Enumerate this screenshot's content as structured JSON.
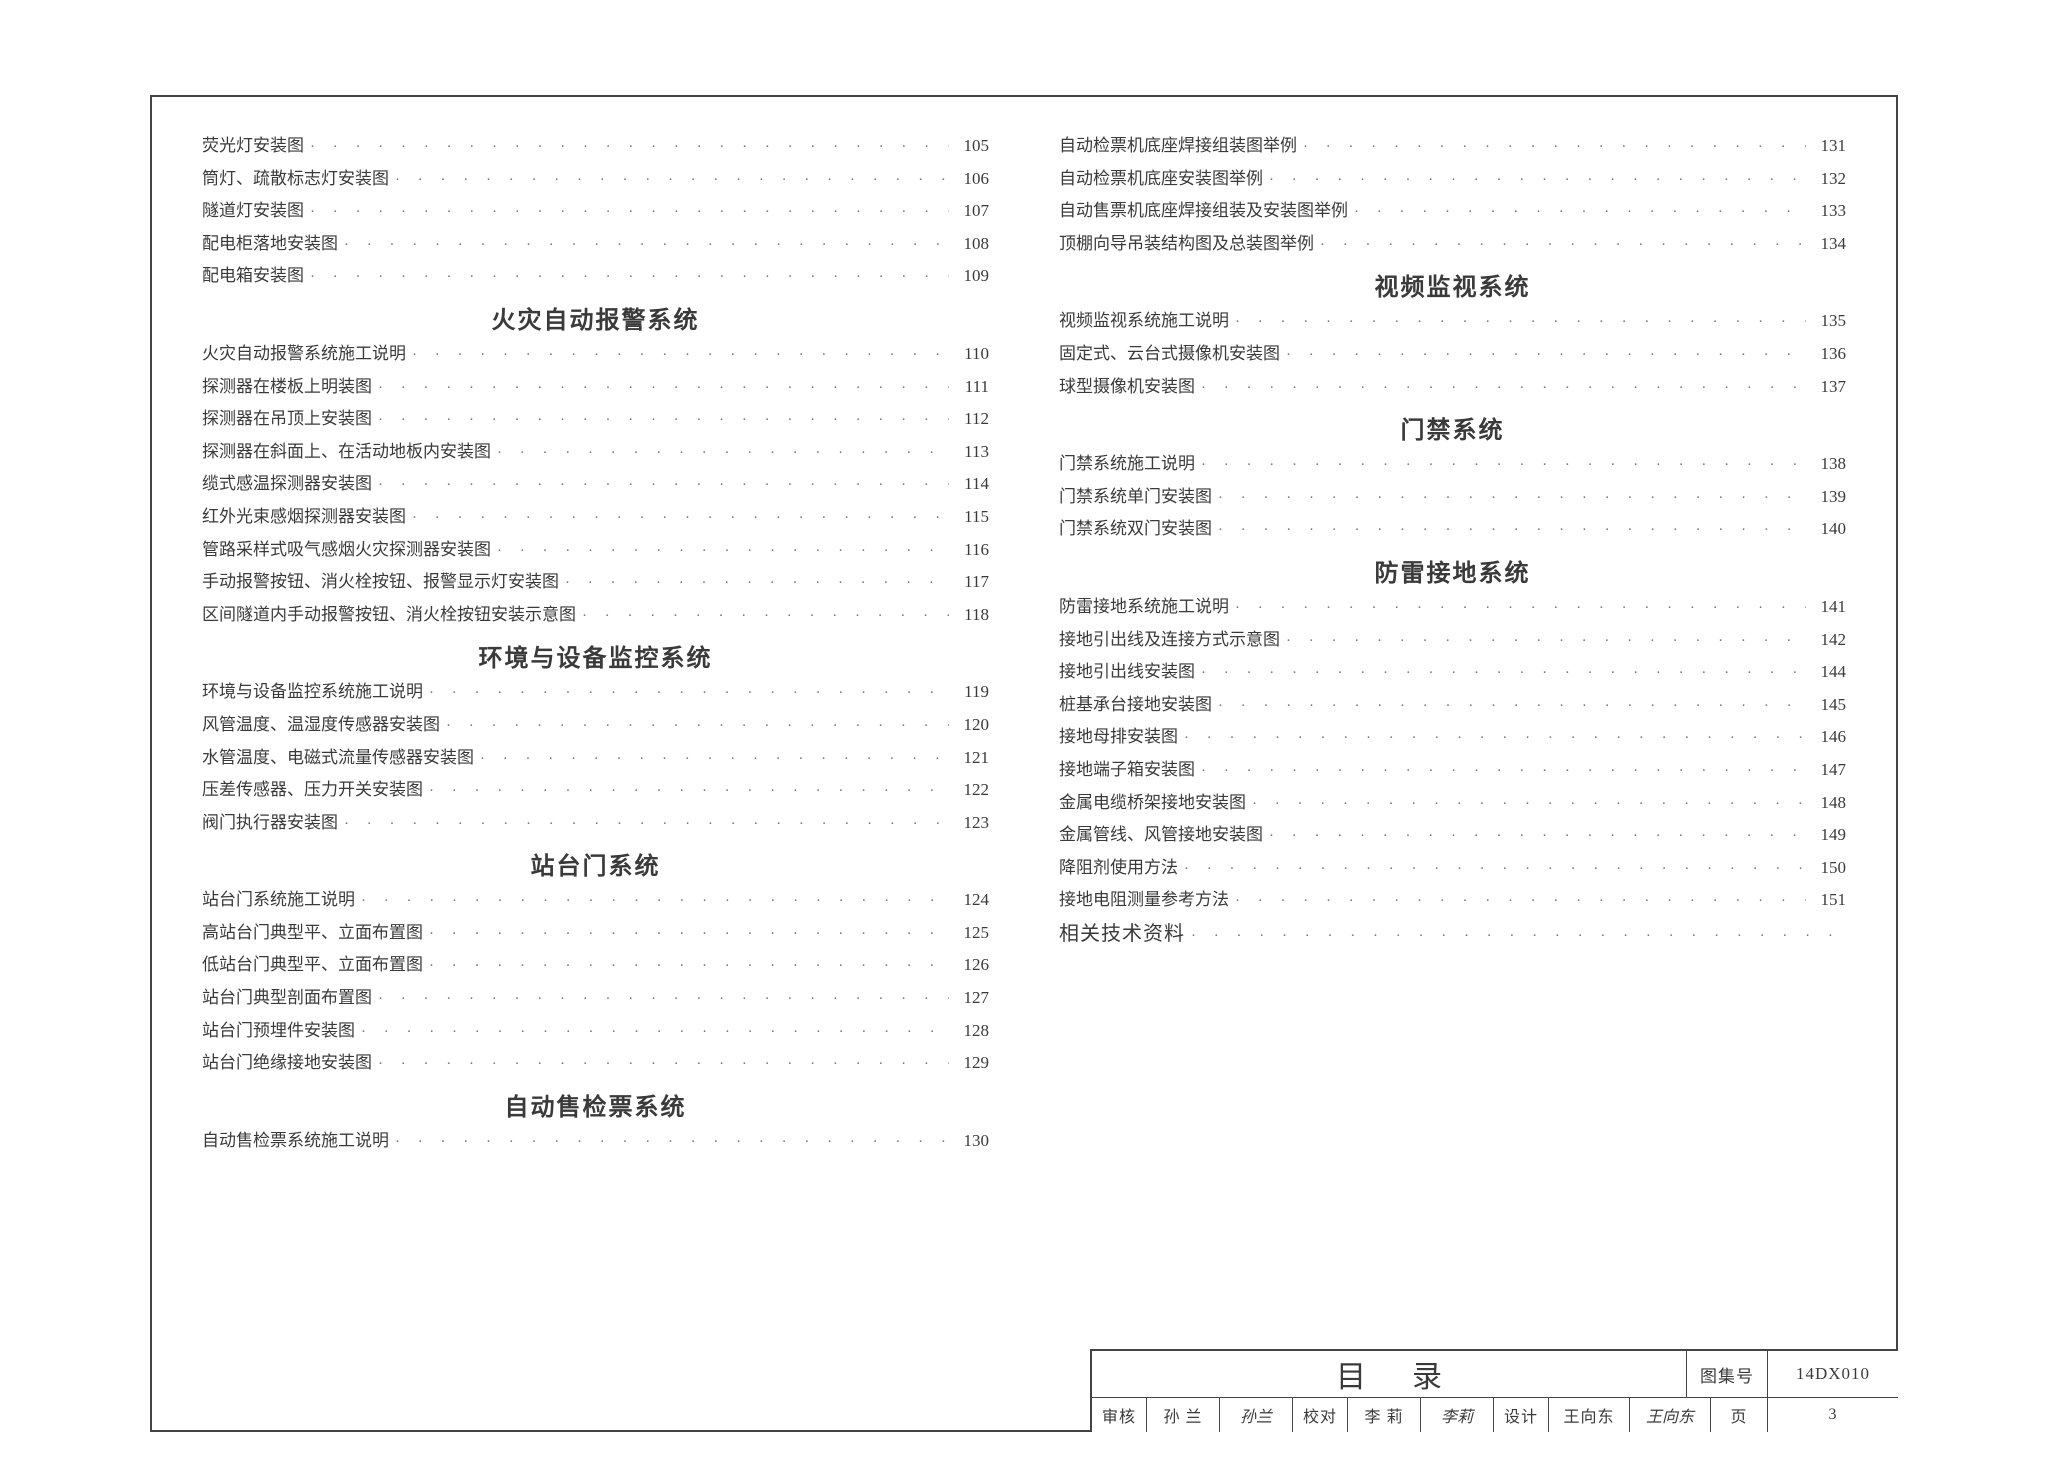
{
  "leftColumn": [
    {
      "type": "item",
      "label": "荧光灯安装图",
      "page": "105"
    },
    {
      "type": "item",
      "label": "筒灯、疏散标志灯安装图",
      "page": "106"
    },
    {
      "type": "item",
      "label": "隧道灯安装图",
      "page": "107"
    },
    {
      "type": "item",
      "label": "配电柜落地安装图",
      "page": "108"
    },
    {
      "type": "item",
      "label": "配电箱安装图",
      "page": "109"
    },
    {
      "type": "section",
      "label": "火灾自动报警系统"
    },
    {
      "type": "item",
      "label": "火灾自动报警系统施工说明",
      "page": "110"
    },
    {
      "type": "item",
      "label": "探测器在楼板上明装图",
      "page": "111"
    },
    {
      "type": "item",
      "label": "探测器在吊顶上安装图",
      "page": "112"
    },
    {
      "type": "item",
      "label": "探测器在斜面上、在活动地板内安装图",
      "page": "113"
    },
    {
      "type": "item",
      "label": "缆式感温探测器安装图",
      "page": "114"
    },
    {
      "type": "item",
      "label": "红外光束感烟探测器安装图",
      "page": "115"
    },
    {
      "type": "item",
      "label": "管路采样式吸气感烟火灾探测器安装图",
      "page": "116"
    },
    {
      "type": "item",
      "label": "手动报警按钮、消火栓按钮、报警显示灯安装图",
      "page": "117"
    },
    {
      "type": "item",
      "label": "区间隧道内手动报警按钮、消火栓按钮安装示意图",
      "page": "118"
    },
    {
      "type": "section",
      "label": "环境与设备监控系统"
    },
    {
      "type": "item",
      "label": "环境与设备监控系统施工说明",
      "page": "119"
    },
    {
      "type": "item",
      "label": "风管温度、温湿度传感器安装图",
      "page": "120"
    },
    {
      "type": "item",
      "label": "水管温度、电磁式流量传感器安装图",
      "page": "121"
    },
    {
      "type": "item",
      "label": "压差传感器、压力开关安装图",
      "page": "122"
    },
    {
      "type": "item",
      "label": "阀门执行器安装图",
      "page": "123"
    },
    {
      "type": "section",
      "label": "站台门系统"
    },
    {
      "type": "item",
      "label": "站台门系统施工说明",
      "page": "124"
    },
    {
      "type": "item",
      "label": "高站台门典型平、立面布置图",
      "page": "125"
    },
    {
      "type": "item",
      "label": "低站台门典型平、立面布置图",
      "page": "126"
    },
    {
      "type": "item",
      "label": "站台门典型剖面布置图",
      "page": "127"
    },
    {
      "type": "item",
      "label": "站台门预埋件安装图",
      "page": "128"
    },
    {
      "type": "item",
      "label": "站台门绝缘接地安装图",
      "page": "129"
    },
    {
      "type": "section",
      "label": "自动售检票系统"
    },
    {
      "type": "item",
      "label": "自动售检票系统施工说明",
      "page": "130"
    }
  ],
  "rightColumn": [
    {
      "type": "item",
      "label": "自动检票机底座焊接组装图举例",
      "page": "131"
    },
    {
      "type": "item",
      "label": "自动检票机底座安装图举例",
      "page": "132"
    },
    {
      "type": "item",
      "label": "自动售票机底座焊接组装及安装图举例",
      "page": "133"
    },
    {
      "type": "item",
      "label": "顶棚向导吊装结构图及总装图举例",
      "page": "134"
    },
    {
      "type": "section",
      "label": "视频监视系统"
    },
    {
      "type": "item",
      "label": "视频监视系统施工说明",
      "page": "135"
    },
    {
      "type": "item",
      "label": "固定式、云台式摄像机安装图",
      "page": "136"
    },
    {
      "type": "item",
      "label": "球型摄像机安装图",
      "page": "137"
    },
    {
      "type": "section",
      "label": "门禁系统"
    },
    {
      "type": "item",
      "label": "门禁系统施工说明",
      "page": "138"
    },
    {
      "type": "item",
      "label": "门禁系统单门安装图",
      "page": "139"
    },
    {
      "type": "item",
      "label": "门禁系统双门安装图",
      "page": "140"
    },
    {
      "type": "section",
      "label": "防雷接地系统"
    },
    {
      "type": "item",
      "label": "防雷接地系统施工说明",
      "page": "141"
    },
    {
      "type": "item",
      "label": "接地引出线及连接方式示意图",
      "page": "142"
    },
    {
      "type": "item",
      "label": "接地引出线安装图",
      "page": "144"
    },
    {
      "type": "item",
      "label": "桩基承台接地安装图",
      "page": "145"
    },
    {
      "type": "item",
      "label": "接地母排安装图",
      "page": "146"
    },
    {
      "type": "item",
      "label": "接地端子箱安装图",
      "page": "147"
    },
    {
      "type": "item",
      "label": "金属电缆桥架接地安装图",
      "page": "148"
    },
    {
      "type": "item",
      "label": "金属管线、风管接地安装图",
      "page": "149"
    },
    {
      "type": "item",
      "label": "降阻剂使用方法",
      "page": "150"
    },
    {
      "type": "item",
      "label": "接地电阻测量参考方法",
      "page": "151"
    },
    {
      "type": "related",
      "label": "相关技术资料",
      "page": ""
    }
  ],
  "titleblock": {
    "title": "目录",
    "code_label": "图集号",
    "code_value": "14DX010",
    "row": [
      {
        "label": "审核",
        "w": "w54"
      },
      {
        "label": "孙 兰",
        "w": "w72"
      },
      {
        "label": "孙兰",
        "w": "w72",
        "sig": true
      },
      {
        "label": "校对",
        "w": "w54"
      },
      {
        "label": "李 莉",
        "w": "w72"
      },
      {
        "label": "李莉",
        "w": "w72",
        "sig": true
      },
      {
        "label": "设计",
        "w": "w54"
      },
      {
        "label": "王向东",
        "w": "w80"
      },
      {
        "label": "王向东",
        "w": "w80",
        "sig": true
      },
      {
        "label": "页",
        "w": "w56"
      },
      {
        "label": "3",
        "w": "w130",
        "last": true
      }
    ]
  }
}
